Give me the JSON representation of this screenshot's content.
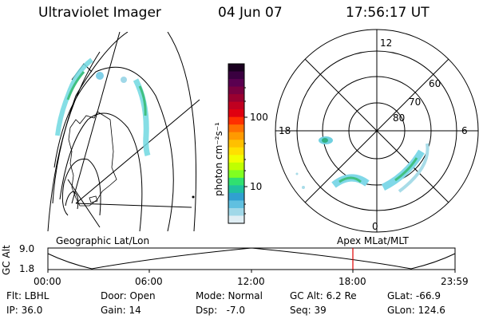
{
  "header": {
    "instrument": "Ultraviolet Imager",
    "date": "04 Jun 07",
    "time": "17:56:17 UT"
  },
  "colorbar": {
    "unit_label": "photon cm⁻²s⁻¹",
    "ticks": [
      "100",
      "10"
    ],
    "colors": [
      "#1a0020",
      "#3a0040",
      "#5a0050",
      "#7a0040",
      "#9a0030",
      "#c00020",
      "#e00010",
      "#ff3000",
      "#ff7000",
      "#ff9a00",
      "#ffc000",
      "#ffe000",
      "#f0ff00",
      "#c0ff00",
      "#80ff20",
      "#30e070",
      "#20c0a0",
      "#30a0d0",
      "#60c0e0",
      "#a0d8e8",
      "#e0eef4"
    ]
  },
  "geo_label": "Geographic Lat/Lon",
  "polar": {
    "mlt_labels": [
      "12",
      "18",
      "6",
      "0"
    ],
    "lat_labels": [
      "60",
      "70",
      "80"
    ]
  },
  "apex_label": "Apex MLat/MLT",
  "timeline": {
    "axis_label": "GC Alt",
    "y_ticks": [
      "9.0",
      "1.8"
    ],
    "x_ticks": [
      "00:00",
      "06:00",
      "12:00",
      "18:00",
      "23:59"
    ],
    "marker_color": "#e00000"
  },
  "status": {
    "flt": "Flt: LBHL",
    "ip": "IP: 36.0",
    "door": "Door: Open",
    "gain": "Gain: 14",
    "mode": "Mode: Normal",
    "dsp": "Dsp:   -7.0",
    "gc_alt": "GC Alt: 6.2 Re",
    "seq": "Seq: 39",
    "glat": "GLat: -66.9",
    "glon": "GLon: 124.6"
  }
}
